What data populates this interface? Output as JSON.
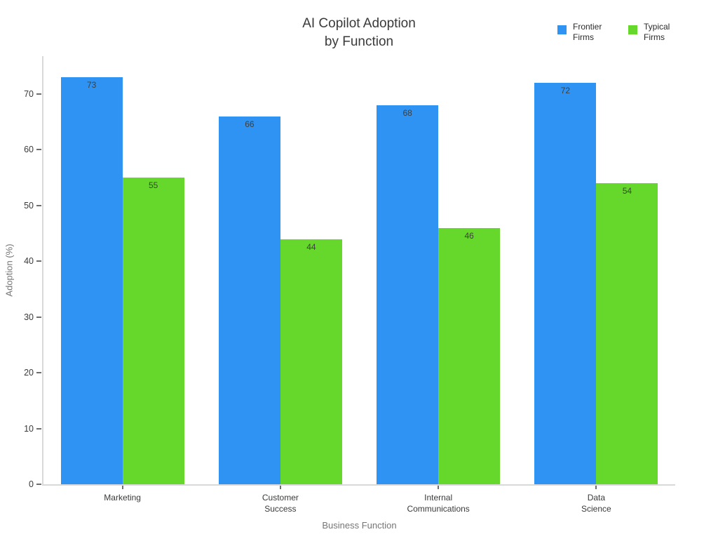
{
  "title_display": "AI Copilot Adoption\nby Function",
  "chart_data": {
    "type": "bar",
    "title": "AI Copilot Adoption by Function",
    "categories": [
      "Marketing",
      "Customer Success",
      "Internal Communications",
      "Data Science"
    ],
    "category_labels": [
      "Marketing",
      "Customer\nSuccess",
      "Internal\nCommunications",
      "Data\nScience"
    ],
    "series": [
      {
        "name": "Frontier Firms",
        "color": "#2E93F2",
        "values": [
          73,
          66,
          68,
          72
        ]
      },
      {
        "name": "Typical Firms",
        "color": "#66D82C",
        "values": [
          55,
          44,
          46,
          54
        ]
      }
    ],
    "xlabel": "Business Function",
    "ylabel": "Adoption (%)",
    "ylim": [
      0,
      76.8
    ],
    "yticks": [
      0,
      10,
      20,
      30,
      40,
      50,
      60,
      70
    ],
    "bar_value_labels": true,
    "grid": false,
    "legend_position": "top-right",
    "axis_color": "#d9d9d9",
    "tick_color": "#6e6e6e",
    "text_color": "#3a3a3a",
    "muted_text_color": "#757575"
  }
}
